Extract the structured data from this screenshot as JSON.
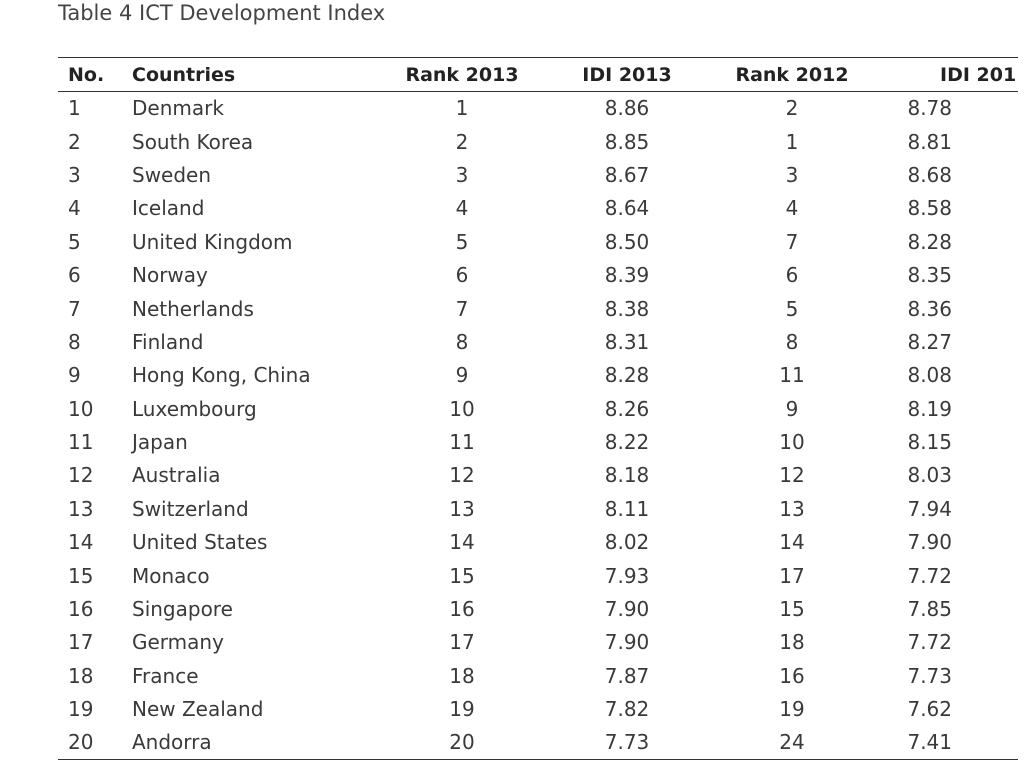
{
  "caption": "Table 4 ICT Development Index",
  "headers": {
    "no": "No.",
    "countries": "Countries",
    "rank2013": "Rank 2013",
    "idi2013": "IDI 2013",
    "rank2012": "Rank 2012",
    "idi2012": "IDI 201"
  },
  "rows": [
    {
      "no": "1",
      "country": "Denmark",
      "rank2013": "1",
      "idi2013": "8.86",
      "rank2012": "2",
      "idi2012": "8.78"
    },
    {
      "no": "2",
      "country": "South Korea",
      "rank2013": "2",
      "idi2013": "8.85",
      "rank2012": "1",
      "idi2012": "8.81"
    },
    {
      "no": "3",
      "country": "Sweden",
      "rank2013": "3",
      "idi2013": "8.67",
      "rank2012": "3",
      "idi2012": "8.68"
    },
    {
      "no": "4",
      "country": "Iceland",
      "rank2013": "4",
      "idi2013": "8.64",
      "rank2012": "4",
      "idi2012": "8.58"
    },
    {
      "no": "5",
      "country": "United Kingdom",
      "rank2013": "5",
      "idi2013": "8.50",
      "rank2012": "7",
      "idi2012": "8.28"
    },
    {
      "no": "6",
      "country": "Norway",
      "rank2013": "6",
      "idi2013": "8.39",
      "rank2012": "6",
      "idi2012": "8.35"
    },
    {
      "no": "7",
      "country": "Netherlands",
      "rank2013": "7",
      "idi2013": "8.38",
      "rank2012": "5",
      "idi2012": "8.36"
    },
    {
      "no": "8",
      "country": "Finland",
      "rank2013": "8",
      "idi2013": "8.31",
      "rank2012": "8",
      "idi2012": "8.27"
    },
    {
      "no": "9",
      "country": "Hong Kong, China",
      "rank2013": "9",
      "idi2013": "8.28",
      "rank2012": "11",
      "idi2012": "8.08"
    },
    {
      "no": "10",
      "country": "Luxembourg",
      "rank2013": "10",
      "idi2013": "8.26",
      "rank2012": "9",
      "idi2012": "8.19"
    },
    {
      "no": "11",
      "country": "Japan",
      "rank2013": "11",
      "idi2013": "8.22",
      "rank2012": "10",
      "idi2012": "8.15"
    },
    {
      "no": "12",
      "country": "Australia",
      "rank2013": "12",
      "idi2013": "8.18",
      "rank2012": "12",
      "idi2012": "8.03"
    },
    {
      "no": "13",
      "country": "Switzerland",
      "rank2013": "13",
      "idi2013": "8.11",
      "rank2012": "13",
      "idi2012": "7.94"
    },
    {
      "no": "14",
      "country": "United States",
      "rank2013": "14",
      "idi2013": "8.02",
      "rank2012": "14",
      "idi2012": "7.90"
    },
    {
      "no": "15",
      "country": "Monaco",
      "rank2013": "15",
      "idi2013": "7.93",
      "rank2012": "17",
      "idi2012": "7.72"
    },
    {
      "no": "16",
      "country": "Singapore",
      "rank2013": "16",
      "idi2013": "7.90",
      "rank2012": "15",
      "idi2012": "7.85"
    },
    {
      "no": "17",
      "country": "Germany",
      "rank2013": "17",
      "idi2013": "7.90",
      "rank2012": "18",
      "idi2012": "7.72"
    },
    {
      "no": "18",
      "country": "France",
      "rank2013": "18",
      "idi2013": "7.87",
      "rank2012": "16",
      "idi2012": "7.73"
    },
    {
      "no": "19",
      "country": "New Zealand",
      "rank2013": "19",
      "idi2013": "7.82",
      "rank2012": "19",
      "idi2012": "7.62"
    },
    {
      "no": "20",
      "country": "Andorra",
      "rank2013": "20",
      "idi2013": "7.73",
      "rank2012": "24",
      "idi2012": "7.41"
    }
  ]
}
